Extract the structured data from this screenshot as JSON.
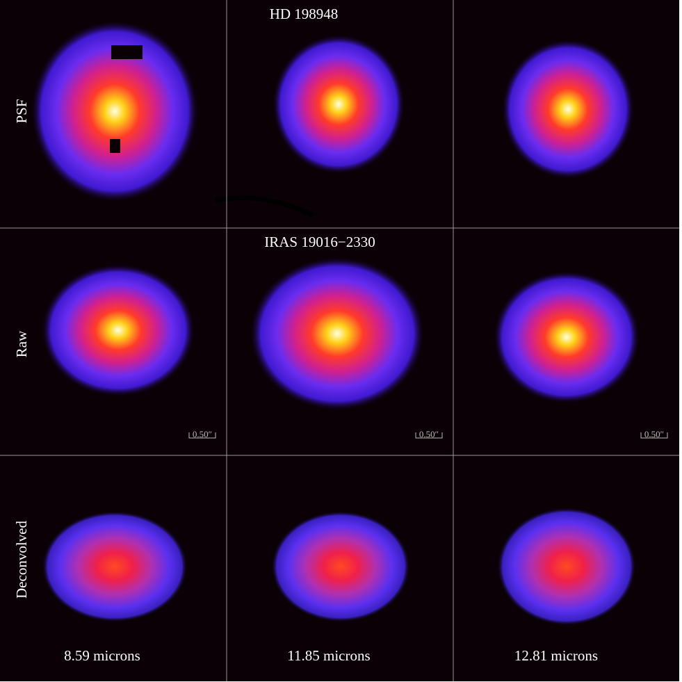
{
  "titles": [
    "HD 198948",
    "IRAS 19016−2330"
  ],
  "row_labels": [
    "PSF",
    "Raw",
    "Deconvolved"
  ],
  "scale_labels": [
    "0.50″",
    "0.50″",
    "0.50″"
  ],
  "wavelengths": [
    "8.59 microns",
    "11.85 microns",
    "12.81 microns"
  ]
}
